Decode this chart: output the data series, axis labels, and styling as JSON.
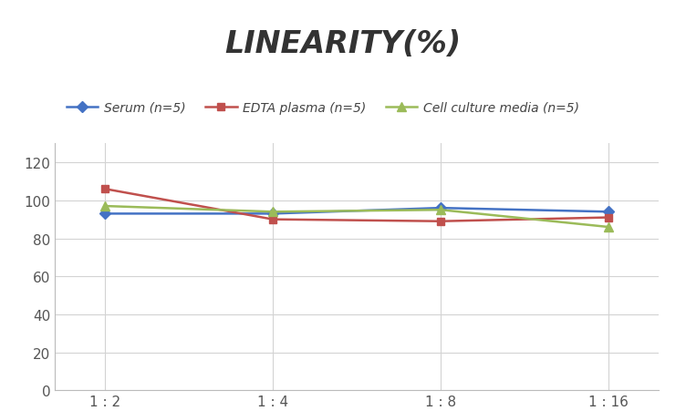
{
  "title": "LINEARITY(%)",
  "title_fontsize": 24,
  "title_fontstyle": "italic",
  "title_fontweight": "bold",
  "x_labels": [
    "1 : 2",
    "1 : 4",
    "1 : 8",
    "1 : 16"
  ],
  "x_positions": [
    0,
    1,
    2,
    3
  ],
  "series": [
    {
      "label": "Serum (n=5)",
      "values": [
        93,
        93,
        96,
        94
      ],
      "color": "#4472C4",
      "marker": "D",
      "markersize": 6,
      "linewidth": 1.8
    },
    {
      "label": "EDTA plasma (n=5)",
      "values": [
        106,
        90,
        89,
        91
      ],
      "color": "#C0504D",
      "marker": "s",
      "markersize": 6,
      "linewidth": 1.8
    },
    {
      "label": "Cell culture media (n=5)",
      "values": [
        97,
        94,
        95,
        86
      ],
      "color": "#9BBB59",
      "marker": "^",
      "markersize": 7,
      "linewidth": 1.8
    }
  ],
  "ylim": [
    0,
    130
  ],
  "yticks": [
    0,
    20,
    40,
    60,
    80,
    100,
    120
  ],
  "background_color": "#ffffff",
  "grid_color": "#d3d3d3",
  "legend_fontsize": 10,
  "tick_fontsize": 11,
  "tick_color": "#555555"
}
